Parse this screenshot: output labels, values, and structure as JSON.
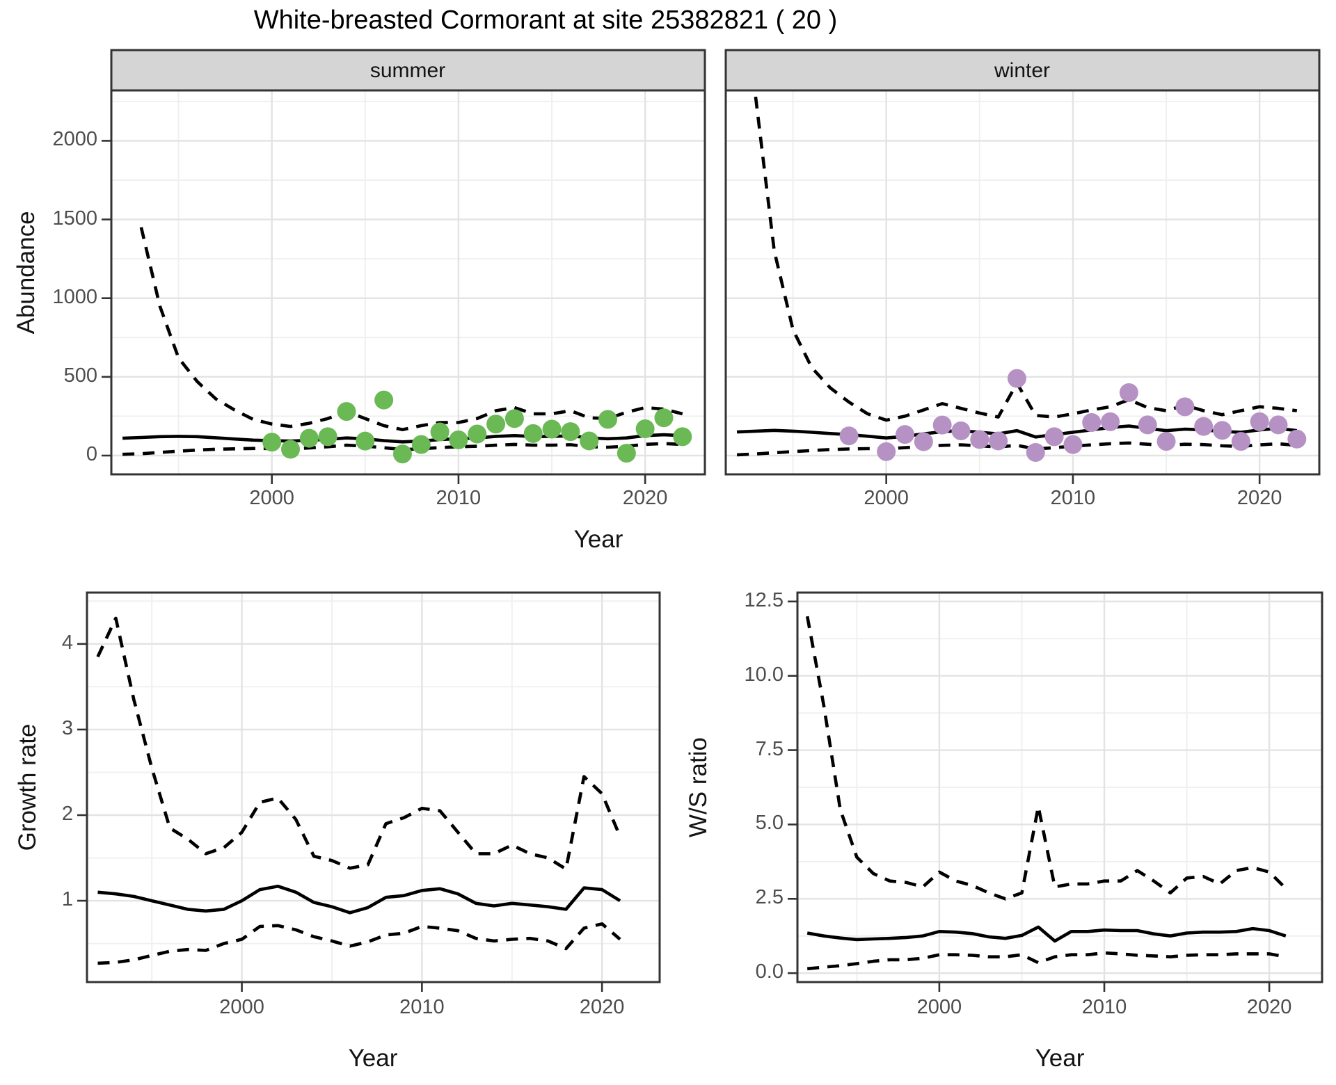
{
  "title": "White-breasted Cormorant at site 25382821 ( 20 )",
  "facets": {
    "summer": "summer",
    "winter": "winter"
  },
  "axis_titles": {
    "abundance": "Abundance",
    "year": "Year",
    "growth": "Growth rate",
    "ws": "W/S ratio"
  },
  "colors": {
    "summer_point": "#6ab955",
    "winter_point": "#b692c4",
    "line": "#000000",
    "panel_border": "#333333",
    "strip_fill": "#d5d5d5",
    "grid_major": "#e3e3e3",
    "grid_minor": "#f0f0f0",
    "tick_text": "#4d4d4d"
  },
  "chart_data": [
    {
      "type": "line+scatter",
      "facet": "summer",
      "title": "Abundance - summer facet",
      "xlabel": "Year",
      "ylabel": "Abundance",
      "xlim": [
        1991.4,
        2023.2
      ],
      "ylim": [
        0,
        2320
      ],
      "xticks": [
        2000,
        2010,
        2020
      ],
      "yticks": [
        0,
        500,
        1000,
        1500,
        2000
      ],
      "yticks_minor": [
        250,
        750,
        1250,
        1750,
        2250
      ],
      "xticks_minor": [
        1995,
        2005,
        2015
      ],
      "grid": true,
      "legend": "none",
      "line_years": [
        1992,
        1993,
        1994,
        1995,
        1996,
        1997,
        1998,
        1999,
        2000,
        2001,
        2002,
        2003,
        2004,
        2005,
        2006,
        2007,
        2008,
        2009,
        2010,
        2011,
        2012,
        2013,
        2014,
        2015,
        2016,
        2017,
        2018,
        2019,
        2020,
        2021,
        2022
      ],
      "series": [
        {
          "name": "upper-ci-dashed",
          "values": [
            null,
            1450,
            950,
            620,
            470,
            360,
            290,
            230,
            200,
            185,
            205,
            235,
            280,
            235,
            190,
            165,
            190,
            210,
            210,
            235,
            285,
            305,
            265,
            265,
            285,
            240,
            235,
            275,
            305,
            295,
            265
          ]
        },
        {
          "name": "fit-solid",
          "values": [
            110,
            115,
            120,
            122,
            120,
            113,
            105,
            98,
            95,
            92,
            97,
            103,
            112,
            106,
            95,
            87,
            92,
            102,
            107,
            112,
            122,
            127,
            121,
            121,
            126,
            112,
            107,
            112,
            127,
            132,
            127
          ]
        },
        {
          "name": "lower-ci-dashed",
          "values": [
            8,
            12,
            20,
            28,
            35,
            40,
            43,
            45,
            45,
            43,
            48,
            56,
            66,
            60,
            50,
            38,
            43,
            51,
            56,
            59,
            66,
            71,
            66,
            66,
            69,
            56,
            53,
            59,
            71,
            76,
            71
          ]
        }
      ],
      "points": {
        "years": [
          2000,
          2001,
          2002,
          2003,
          2004,
          2005,
          2006,
          2007,
          2008,
          2009,
          2010,
          2011,
          2012,
          2013,
          2014,
          2015,
          2016,
          2017,
          2018,
          2019,
          2020,
          2021,
          2022
        ],
        "values": [
          85,
          40,
          110,
          120,
          280,
          92,
          353,
          10,
          70,
          150,
          100,
          137,
          200,
          235,
          140,
          168,
          152,
          93,
          230,
          15,
          170,
          240,
          120
        ]
      }
    },
    {
      "type": "line+scatter",
      "facet": "winter",
      "title": "Abundance - winter facet",
      "xlabel": "Year",
      "ylabel": "Abundance",
      "xlim": [
        1991.4,
        2023.2
      ],
      "ylim": [
        0,
        2320
      ],
      "xticks": [
        2000,
        2010,
        2020
      ],
      "yticks": [
        0,
        500,
        1000,
        1500,
        2000
      ],
      "yticks_minor": [
        250,
        750,
        1250,
        1750,
        2250
      ],
      "xticks_minor": [
        1995,
        2005,
        2015
      ],
      "grid": true,
      "legend": "none",
      "line_years": [
        1992,
        1993,
        1994,
        1995,
        1996,
        1997,
        1998,
        1999,
        2000,
        2001,
        2002,
        2003,
        2004,
        2005,
        2006,
        2007,
        2008,
        2009,
        2010,
        2011,
        2012,
        2013,
        2014,
        2015,
        2016,
        2017,
        2018,
        2019,
        2020,
        2021,
        2022
      ],
      "series": [
        {
          "name": "upper-ci-dashed",
          "values": [
            null,
            2280,
            1300,
            800,
            560,
            430,
            340,
            265,
            225,
            250,
            290,
            330,
            300,
            270,
            245,
            460,
            255,
            245,
            265,
            290,
            310,
            355,
            305,
            285,
            320,
            285,
            260,
            285,
            310,
            300,
            285
          ]
        },
        {
          "name": "fit-solid",
          "values": [
            150,
            155,
            160,
            155,
            148,
            140,
            133,
            123,
            112,
            122,
            138,
            152,
            158,
            148,
            138,
            158,
            118,
            133,
            148,
            163,
            178,
            188,
            173,
            158,
            168,
            163,
            153,
            148,
            163,
            173,
            158
          ]
        },
        {
          "name": "lower-ci-dashed",
          "values": [
            5,
            10,
            18,
            25,
            32,
            38,
            42,
            44,
            44,
            50,
            58,
            65,
            68,
            62,
            55,
            65,
            42,
            50,
            60,
            68,
            75,
            80,
            72,
            65,
            72,
            70,
            62,
            58,
            68,
            75,
            65
          ]
        }
      ],
      "points": {
        "years": [
          1998,
          2000,
          2001,
          2002,
          2003,
          2004,
          2005,
          2006,
          2007,
          2008,
          2009,
          2010,
          2011,
          2012,
          2013,
          2014,
          2015,
          2016,
          2017,
          2018,
          2019,
          2020,
          2021,
          2022
        ],
        "values": [
          125,
          25,
          134,
          88,
          194,
          157,
          102,
          93,
          490,
          20,
          120,
          70,
          210,
          215,
          400,
          195,
          90,
          310,
          185,
          160,
          90,
          215,
          195,
          105
        ]
      }
    },
    {
      "type": "line",
      "facet": null,
      "title": "Growth rate",
      "xlabel": "Year",
      "ylabel": "Growth rate",
      "xlim": [
        1991.4,
        2023.2
      ],
      "ylim": [
        0.05,
        4.6
      ],
      "xticks": [
        2000,
        2010,
        2020
      ],
      "yticks": [
        1,
        2,
        3,
        4
      ],
      "yticks_minor": [
        0.5,
        1.5,
        2.5,
        3.5,
        4.5
      ],
      "xticks_minor": [
        1995,
        2005,
        2015
      ],
      "grid": true,
      "legend": "none",
      "line_years": [
        1992,
        1993,
        1994,
        1995,
        1996,
        1997,
        1998,
        1999,
        2000,
        2001,
        2002,
        2003,
        2004,
        2005,
        2006,
        2007,
        2008,
        2009,
        2010,
        2011,
        2012,
        2013,
        2014,
        2015,
        2016,
        2017,
        2018,
        2019,
        2020,
        2021
      ],
      "series": [
        {
          "name": "upper-ci-dashed",
          "values": [
            3.85,
            4.3,
            3.35,
            2.55,
            1.85,
            1.72,
            1.55,
            1.62,
            1.8,
            2.15,
            2.2,
            1.95,
            1.52,
            1.47,
            1.38,
            1.42,
            1.9,
            1.97,
            2.08,
            2.05,
            1.8,
            1.55,
            1.55,
            1.65,
            1.55,
            1.5,
            1.37,
            2.45,
            2.25,
            1.75
          ]
        },
        {
          "name": "fit-solid",
          "values": [
            1.1,
            1.08,
            1.05,
            1.0,
            0.95,
            0.9,
            0.88,
            0.9,
            1.0,
            1.13,
            1.17,
            1.1,
            0.98,
            0.93,
            0.86,
            0.92,
            1.04,
            1.06,
            1.12,
            1.14,
            1.08,
            0.97,
            0.94,
            0.97,
            0.95,
            0.93,
            0.9,
            1.15,
            1.13,
            1.0
          ]
        },
        {
          "name": "lower-ci-dashed",
          "values": [
            0.27,
            0.28,
            0.31,
            0.36,
            0.41,
            0.43,
            0.42,
            0.5,
            0.55,
            0.7,
            0.71,
            0.66,
            0.58,
            0.53,
            0.47,
            0.52,
            0.6,
            0.62,
            0.7,
            0.68,
            0.65,
            0.56,
            0.53,
            0.55,
            0.56,
            0.53,
            0.44,
            0.68,
            0.73,
            0.55
          ]
        }
      ],
      "points": null
    },
    {
      "type": "line",
      "facet": null,
      "title": "W/S ratio",
      "xlabel": "Year",
      "ylabel": "W/S ratio",
      "xlim": [
        1991.4,
        2023.2
      ],
      "ylim": [
        -0.3,
        12.8
      ],
      "xticks": [
        2000,
        2010,
        2020
      ],
      "yticks": [
        0.0,
        2.5,
        5.0,
        7.5,
        10.0,
        12.5
      ],
      "yticks_minor": [
        1.25,
        3.75,
        6.25,
        8.75,
        11.25
      ],
      "xticks_minor": [
        1995,
        2005,
        2015
      ],
      "ytick_labels": [
        "0.0",
        "2.5",
        "5.0",
        "7.5",
        "10.0",
        "12.5"
      ],
      "grid": true,
      "legend": "none",
      "line_years": [
        1992,
        1993,
        1994,
        1995,
        1996,
        1997,
        1998,
        1999,
        2000,
        2001,
        2002,
        2003,
        2004,
        2005,
        2006,
        2007,
        2008,
        2009,
        2010,
        2011,
        2012,
        2013,
        2014,
        2015,
        2016,
        2017,
        2018,
        2019,
        2020,
        2021
      ],
      "series": [
        {
          "name": "upper-ci-dashed",
          "values": [
            12.0,
            9.0,
            5.5,
            3.9,
            3.35,
            3.1,
            3.05,
            2.9,
            3.4,
            3.1,
            2.95,
            2.7,
            2.5,
            2.7,
            5.6,
            2.9,
            3.0,
            3.0,
            3.1,
            3.1,
            3.45,
            3.1,
            2.7,
            3.2,
            3.25,
            3.0,
            3.45,
            3.55,
            3.4,
            2.85
          ]
        },
        {
          "name": "fit-solid",
          "values": [
            1.35,
            1.25,
            1.18,
            1.13,
            1.15,
            1.17,
            1.2,
            1.25,
            1.4,
            1.38,
            1.33,
            1.22,
            1.17,
            1.27,
            1.55,
            1.08,
            1.4,
            1.4,
            1.45,
            1.43,
            1.43,
            1.32,
            1.25,
            1.35,
            1.38,
            1.38,
            1.4,
            1.5,
            1.43,
            1.25
          ]
        },
        {
          "name": "lower-ci-dashed",
          "values": [
            0.15,
            0.2,
            0.25,
            0.32,
            0.4,
            0.45,
            0.45,
            0.5,
            0.62,
            0.62,
            0.6,
            0.55,
            0.55,
            0.62,
            0.35,
            0.55,
            0.62,
            0.62,
            0.68,
            0.65,
            0.6,
            0.58,
            0.55,
            0.6,
            0.62,
            0.62,
            0.65,
            0.65,
            0.65,
            0.55
          ]
        }
      ],
      "points": null
    }
  ]
}
